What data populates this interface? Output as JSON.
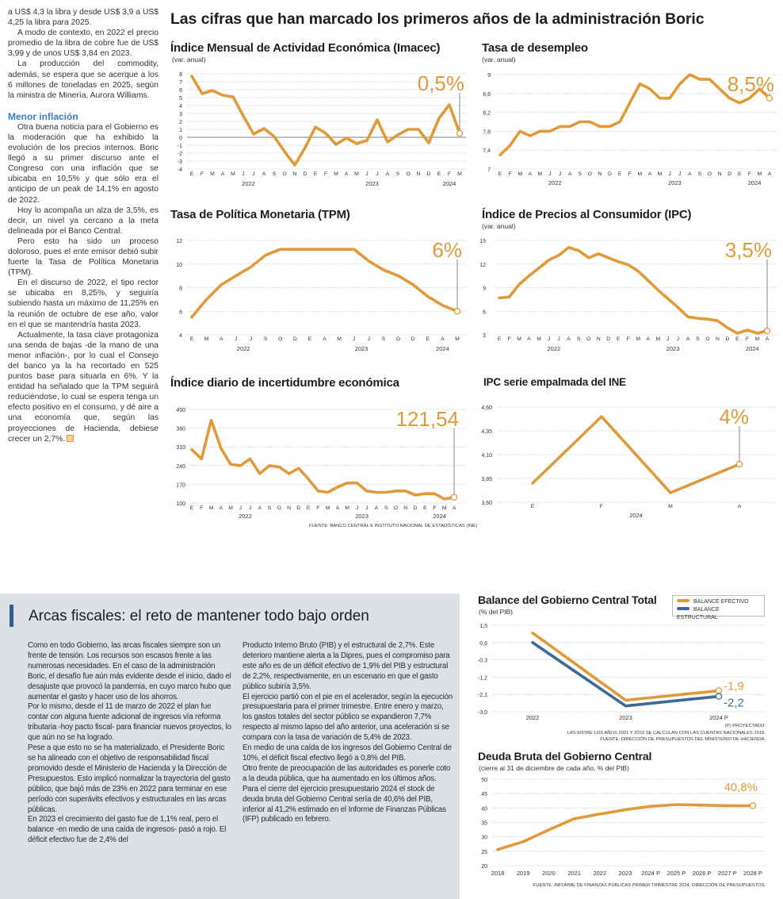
{
  "header": {
    "title": "Las cifras que han marcado los primeros años de la administración Boric"
  },
  "left_column": {
    "paragraphs_a": [
      "a US$ 4,3 la libra y desde US$ 3,9 a US$ 4,25 la libra para 2025.",
      "A modo de contexto, en 2022 el precio promedio de la libra de cobre fue de US$ 3,99 y de unos US$ 3,84 en 2023.",
      "La producción del commodity, además, se espera que se acerque a los 6 millones de toneladas en 2025, según la ministra de Minería, Aurora Williams."
    ],
    "subheading": "Menor inflación",
    "paragraphs_b": [
      "Otra buena noticia para el Gobierno es la moderación que ha exhibido la evolución de los precios internos. Boric llegó a su primer discurso ante el Congreso con una inflación que se ubicaba en 10,5% y que sólo era el anticipo de un peak de 14,1% en agosto de 2022.",
      "Hoy lo acompaña un alza de 3,5%, es decir, un nivel ya cercano a la meta delineada por el Banco Central.",
      "Pero esto ha sido un proceso doloroso, pues el ente emisor debió subir fuerte la Tasa de Política Monetaria (TPM).",
      "En el discurso de 2022, el tipo rector se ubicaba en 8,25%, y seguiría subiendo hasta un máximo de 11,25% en la reunión de octubre de ese año, valor en el que se mantendría hasta 2023.",
      "Actualmente, la tasa clave protagoniza una senda de bajas -de la mano de una menor inflación-, por lo cual el Consejo del banco ya la ha recortado en 525 puntos base para situarla en 6%. Y la entidad ha señalado que la TPM seguirá reduciéndose, lo cual se espera tenga un efecto positivo en el consumo, y dé aire a una economía que, según las proyecciones de Hacienda, debiese crecer un 2,7%."
    ]
  },
  "fiscal": {
    "title": "Arcas fiscales: el reto de mantener todo bajo orden",
    "col1": [
      "Como en todo Gobierno, las arcas fiscales siempre son un frente de tensión. Los recursos son escasos frente a las numerosas necesidades. En el caso de la administración Boric, el desafío fue aún más evidente desde el inicio, dado el desajuste que provocó la pandemia, en cuyo marco hubo que aumentar el gasto y hacer uso de los ahorros.",
      "Por lo mismo, desde el 11 de marzo de 2022 el plan fue contar con alguna fuente adicional de ingresos vía reforma tributaria -hoy pacto fiscal- para financiar nuevos proyectos, lo que aún no se ha logrado.",
      "Pese a que esto no se ha materializado, el Presidente Boric se ha alineado con el objetivo de responsabilidad fiscal promovido desde el Ministerio de Hacienda y la Dirección de Presupuestos. Esto implicó normalizar la trayectoria del gasto público, que bajó más de 23% en 2022 para terminar en ese período con superávits efectivos y estructurales en las arcas públicas.",
      "En 2023 el crecimiento del gasto fue de 1,1% real, pero el balance -en medio de una caída de ingresos- pasó a rojo. El déficit efectivo fue de 2,4% del"
    ],
    "col2": [
      "Producto Interno Bruto (PIB) y el estructural de 2,7%. Este deterioro mantiene alerta a la Dipres, pues el compromiso para este año es de un déficit efectivo de 1,9% del PIB y estructural de 2,2%, respectivamente, en un escenario en que el gasto público subiría 3,5%.",
      "El ejercicio partió con el pie en el acelerador, según la ejecución presupuestaria para el primer trimestre. Entre enero y marzo, los gastos totales del sector público se expandieron 7,7% respecto al mismo lapso del año anterior, una aceleración si se compara con la tasa de variación de 5,4% de 2023.",
      "En medio de una caída de los ingresos del Gobierno Central de 10%, el déficit fiscal efectivo llegó a 0,8% del PIB.",
      "Otro frente de preocupación de las autoridades es ponerle coto a la deuda pública, que ha aumentado en los últimos años.",
      "Para el cierre del ejercicio presupuestario 2024 el stock de deuda bruta del Gobierno Central sería de 40,6% del PIB, inferior al 41,2% estimado en el Informe de Finanzas Públicas (IFP) publicado en febrero."
    ]
  },
  "colors": {
    "orange": "#e09a3a",
    "blue": "#3c6a96",
    "subheading": "#3b7dbf",
    "fiscal_bg": "#dde0e5"
  },
  "chart_data": [
    {
      "type": "line",
      "title": "Índice Mensual de Actividad Económica (Imacec)",
      "subtitle": "(var. anual)",
      "ylim": [
        -4,
        8
      ],
      "yticks": [
        8,
        7,
        6,
        5,
        4,
        3,
        2,
        1,
        0,
        -1,
        -2,
        -3,
        -4
      ],
      "zero_line": true,
      "categories": [
        "E",
        "F",
        "M",
        "A",
        "M",
        "J",
        "J",
        "A",
        "S",
        "O",
        "N",
        "D",
        "E",
        "F",
        "M",
        "A",
        "M",
        "J",
        "J",
        "A",
        "S",
        "O",
        "N",
        "D",
        "E",
        "F",
        "M"
      ],
      "x_groups": [
        {
          "label": "2022",
          "count": 12
        },
        {
          "label": "2023",
          "count": 12
        },
        {
          "label": "2024",
          "count": 3
        }
      ],
      "series": [
        {
          "color": "#e09a3a",
          "values": [
            7.7,
            5.5,
            5.9,
            5.3,
            5.1,
            2.7,
            0.4,
            1.1,
            0.1,
            -1.8,
            -3.5,
            -1.3,
            1.3,
            0.5,
            -0.9,
            -0.1,
            -0.8,
            -0.4,
            2.2,
            -0.6,
            0.3,
            1.0,
            1.0,
            -0.7,
            2.4,
            4.1,
            0.5
          ]
        }
      ],
      "highlight": "0,5%",
      "grid": true
    },
    {
      "type": "line",
      "title": "Tasa de desempleo",
      "subtitle": "(var. anual)",
      "ylim": [
        7.0,
        9.0
      ],
      "yticks": [
        9.0,
        8.6,
        8.2,
        7.8,
        7.4,
        7.0
      ],
      "categories": [
        "E",
        "F",
        "M",
        "A",
        "M",
        "J",
        "J",
        "A",
        "S",
        "O",
        "N",
        "D",
        "E",
        "F",
        "M",
        "A",
        "M",
        "J",
        "J",
        "A",
        "S",
        "O",
        "N",
        "D",
        "E",
        "F",
        "M",
        "A"
      ],
      "x_groups": [
        {
          "label": "2022",
          "count": 12
        },
        {
          "label": "2023",
          "count": 12
        },
        {
          "label": "2024",
          "count": 4
        }
      ],
      "series": [
        {
          "color": "#e09a3a",
          "values": [
            7.3,
            7.5,
            7.8,
            7.7,
            7.8,
            7.8,
            7.9,
            7.9,
            8.0,
            8.0,
            7.9,
            7.9,
            8.0,
            8.4,
            8.8,
            8.7,
            8.5,
            8.5,
            8.8,
            9.0,
            8.9,
            8.9,
            8.7,
            8.5,
            8.4,
            8.5,
            8.7,
            8.5
          ]
        }
      ],
      "highlight": "8,5%",
      "grid": true
    },
    {
      "type": "line",
      "title": "Tasa de Política Monetaria (TPM)",
      "subtitle": "",
      "ylim": [
        4,
        12
      ],
      "yticks": [
        12,
        10,
        8,
        6,
        4
      ],
      "categories": [
        "E",
        "M",
        "A",
        "J",
        "J",
        "S",
        "O",
        "D",
        "E",
        "A",
        "M",
        "J",
        "J",
        "S",
        "O",
        "D",
        "E",
        "A",
        "M"
      ],
      "x_groups": [
        {
          "label": "2022",
          "count": 8
        },
        {
          "label": "2023",
          "count": 8
        },
        {
          "label": "2024",
          "count": 3
        }
      ],
      "series": [
        {
          "color": "#e09a3a",
          "values": [
            5.5,
            7.0,
            8.25,
            9.0,
            9.75,
            10.75,
            11.25,
            11.25,
            11.25,
            11.25,
            11.25,
            11.25,
            10.25,
            9.5,
            9.0,
            8.25,
            7.25,
            6.5,
            6.0
          ]
        }
      ],
      "highlight": "6%",
      "grid": true
    },
    {
      "type": "line",
      "title": "Índice de Precios al Consumidor (IPC)",
      "subtitle": "(var. anual)",
      "ylim": [
        3,
        15
      ],
      "yticks": [
        15,
        12,
        9,
        6,
        3
      ],
      "categories": [
        "E",
        "F",
        "M",
        "A",
        "M",
        "J",
        "J",
        "A",
        "S",
        "O",
        "N",
        "D",
        "E",
        "F",
        "M",
        "A",
        "M",
        "J",
        "J",
        "A",
        "S",
        "O",
        "N",
        "D",
        "E",
        "F",
        "M",
        "A"
      ],
      "x_groups": [
        {
          "label": "2022",
          "count": 12
        },
        {
          "label": "2023",
          "count": 12
        },
        {
          "label": "2024",
          "count": 4
        }
      ],
      "series": [
        {
          "color": "#e09a3a",
          "values": [
            7.7,
            7.8,
            9.4,
            10.5,
            11.5,
            12.5,
            13.1,
            14.1,
            13.7,
            12.8,
            13.3,
            12.8,
            12.3,
            11.9,
            11.1,
            9.9,
            8.7,
            7.6,
            6.5,
            5.3,
            5.1,
            5.0,
            4.8,
            3.9,
            3.2,
            3.6,
            3.2,
            3.5
          ]
        }
      ],
      "highlight": "3,5%",
      "grid": true
    },
    {
      "type": "line",
      "title": "Índice diario de incertidumbre económica",
      "subtitle": "",
      "ylim": [
        100,
        450
      ],
      "yticks": [
        450,
        380,
        310,
        240,
        170,
        100
      ],
      "categories": [
        "E",
        "F",
        "M",
        "A",
        "M",
        "J",
        "J",
        "A",
        "S",
        "O",
        "N",
        "D",
        "E",
        "F",
        "M",
        "A",
        "M",
        "J",
        "J",
        "A",
        "S",
        "O",
        "N",
        "D",
        "E",
        "F",
        "M",
        "A"
      ],
      "x_groups": [
        {
          "label": "2022",
          "count": 12
        },
        {
          "label": "2023",
          "count": 12
        },
        {
          "label": "2024",
          "count": 4
        }
      ],
      "series": [
        {
          "color": "#e09a3a",
          "values": [
            300,
            265,
            410,
            305,
            245,
            240,
            265,
            210,
            240,
            235,
            210,
            230,
            190,
            145,
            140,
            160,
            175,
            175,
            145,
            140,
            140,
            145,
            145,
            130,
            135,
            135,
            115,
            121.54
          ]
        }
      ],
      "highlight": "121,54",
      "source": "FUENTE: BANCO CENTRAL E INSTITUTO NACIONAL DE ESTADÍSTICAS (INE)",
      "grid": true
    },
    {
      "type": "line",
      "title": "IPC serie empalmada del INE",
      "subtitle": "",
      "ylim": [
        3.6,
        4.6
      ],
      "yticks": [
        4.6,
        4.35,
        4.1,
        3.85,
        3.6
      ],
      "decimals": 2,
      "categories": [
        "E",
        "F",
        "M",
        "A"
      ],
      "x_groups": [
        {
          "label": "2024",
          "count": 4
        }
      ],
      "series": [
        {
          "color": "#e09a3a",
          "values": [
            3.8,
            4.5,
            3.7,
            4.0
          ]
        }
      ],
      "highlight": "4%",
      "grid": true
    },
    {
      "type": "line",
      "title": "Balance del Gobierno Central Total",
      "subtitle": "(% del PIB)",
      "ylim": [
        -3.0,
        1.5
      ],
      "yticks": [
        1.5,
        0.6,
        -0.3,
        -1.2,
        -2.1,
        -3.0
      ],
      "decimals": 1,
      "categories": [
        "2022",
        "2023",
        "2024 P"
      ],
      "series": [
        {
          "name": "BALANCE EFECTIVO",
          "color": "#e09a3a",
          "values": [
            1.1,
            -2.4,
            -1.9
          ],
          "end_label": "-1,9"
        },
        {
          "name": "BALANCE ESTRUCTURAL",
          "color": "#3c6a96",
          "values": [
            0.6,
            -2.7,
            -2.2
          ],
          "end_label": "-2,2"
        }
      ],
      "legend": "top-right",
      "notes": [
        "(P) PROYECTADO.",
        "LAS ENTRE LOS AÑOS 2021 Y 2023 SE CALCULAN  CON LAS CUENTAS NACIONALES 2018.",
        "FUENTE: DIRECCIÓN DE PRESUPUESTOS DEL MINISTERIO DE HACIENDA."
      ],
      "grid": true
    },
    {
      "type": "line",
      "title": "Deuda Bruta del Gobierno Central",
      "subtitle": "(cierre al 31 de diciembre de cada año, % del PIB)",
      "ylim": [
        20,
        50
      ],
      "yticks": [
        50,
        45,
        40,
        35,
        30,
        25,
        20
      ],
      "categories": [
        "2018",
        "2019",
        "2020",
        "2021",
        "2022",
        "2023",
        "2024 P",
        "2025 P",
        "2026 P",
        "2027 P",
        "2028 P"
      ],
      "series": [
        {
          "color": "#e09a3a",
          "values": [
            25.6,
            28.3,
            32.4,
            36.3,
            37.9,
            39.4,
            40.6,
            41.2,
            41.0,
            40.8,
            40.8
          ]
        }
      ],
      "highlight": "40,8%",
      "highlight_line": false,
      "source": "FUENTE: INFORME DE FINANZAS PÚBLICAS PRIMER TRIMESTRE 2024, DIRECCIÓN DE PRESUPUESTOS.",
      "grid": true
    }
  ]
}
